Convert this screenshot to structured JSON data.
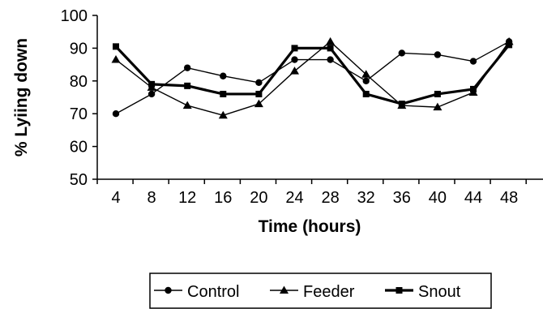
{
  "chart_data": {
    "type": "line",
    "xlabel": "Time (hours)",
    "ylabel": "% Lyiing down",
    "x": [
      4,
      8,
      12,
      16,
      20,
      24,
      28,
      32,
      36,
      40,
      44,
      48
    ],
    "ylim": [
      50,
      100
    ],
    "yticks": [
      50,
      60,
      70,
      80,
      90,
      100
    ],
    "grid": false,
    "legend_position": "bottom",
    "series": [
      {
        "name": "Control",
        "marker": "circle",
        "values": [
          70,
          76,
          84,
          81.5,
          79.5,
          86.5,
          86.5,
          80,
          88.5,
          88,
          86,
          92
        ]
      },
      {
        "name": "Feeder",
        "marker": "triangle",
        "values": [
          86.5,
          78,
          72.5,
          69.5,
          73,
          83,
          92,
          82,
          72.5,
          72,
          76.5,
          92
        ]
      },
      {
        "name": "Snout",
        "marker": "square",
        "values": [
          90.5,
          79,
          78.5,
          76,
          76,
          90,
          90,
          76,
          73,
          76,
          77.5,
          91
        ]
      }
    ]
  }
}
